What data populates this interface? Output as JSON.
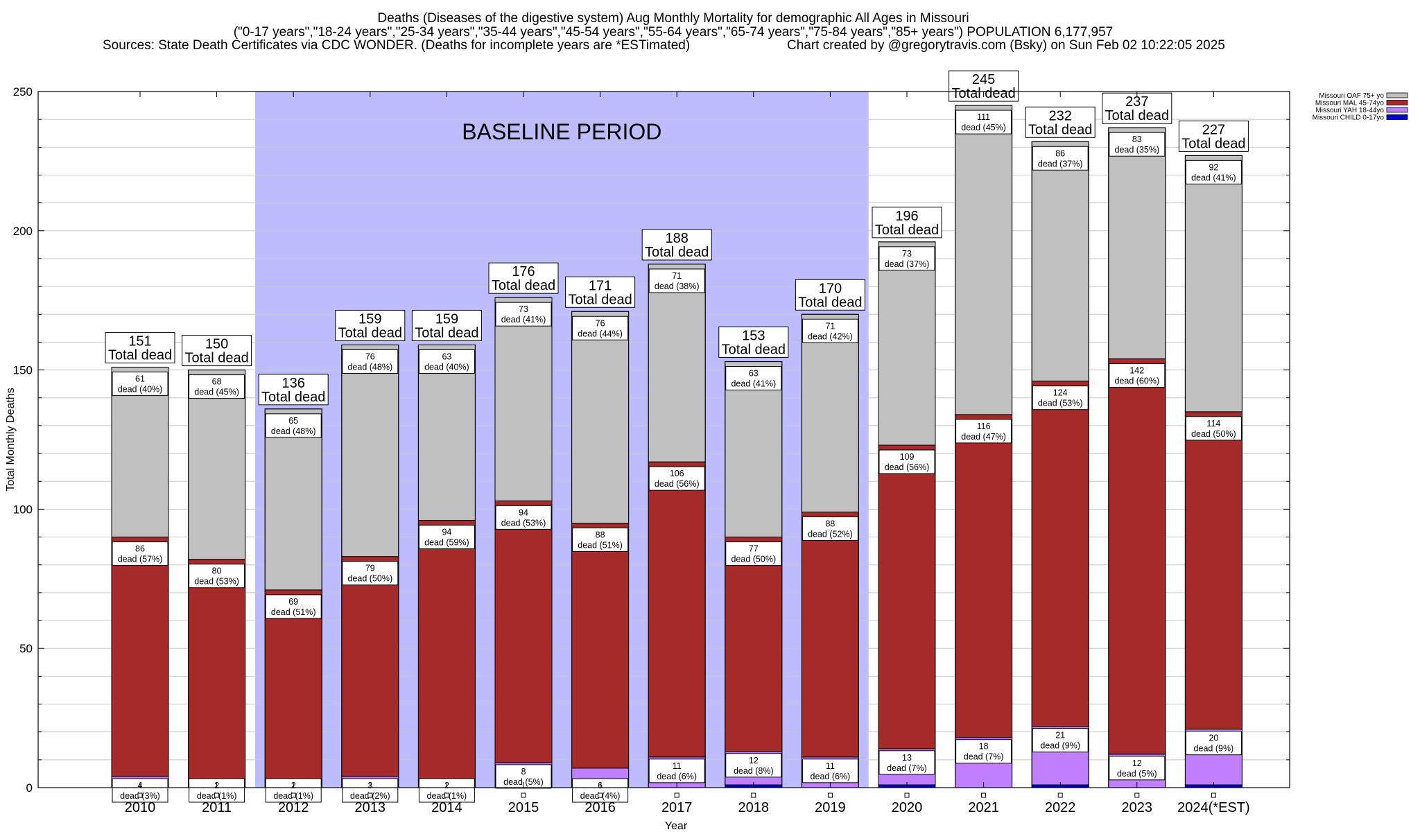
{
  "header": {
    "title_line1": "Deaths (Diseases of the digestive system) Aug Monthly Mortality for demographic All Ages in Missouri",
    "title_line2": "(\"0-17 years\",\"18-24 years\",\"25-34 years\",\"35-44 years\",\"45-54 years\",\"55-64 years\",\"65-74 years\",\"75-84 years\",\"85+ years\") POPULATION 6,177,957",
    "sources": "Sources: State Death Certificates via CDC WONDER. (Deaths for incomplete years are *ESTimated)",
    "credit": "Chart created by @gregorytravis.com (Bsky) on Sun Feb 02 10:22:05 2025"
  },
  "chart_data": {
    "type": "bar",
    "stacked": true,
    "xlabel": "Year",
    "ylabel": "Total Monthly Deaths",
    "ylim": [
      0,
      250
    ],
    "yticks": [
      0,
      50,
      100,
      150,
      200,
      250
    ],
    "grid": true,
    "legend_position": "top-right",
    "baseline_label": "BASELINE PERIOD",
    "baseline_range": [
      "2012",
      "2019"
    ],
    "total_label_suffix": "Total dead",
    "segment_label_word": "dead",
    "categories": [
      "2010",
      "2011",
      "2012",
      "2013",
      "2014",
      "2015",
      "2016",
      "2017",
      "2018",
      "2019",
      "2020",
      "2021",
      "2022",
      "2023",
      "2024(*EST)"
    ],
    "totals": [
      151,
      150,
      136,
      159,
      159,
      176,
      171,
      188,
      153,
      170,
      196,
      245,
      232,
      237,
      227
    ],
    "series": [
      {
        "name": "Missouri CHILD 0-17yo",
        "color": "#0000cc",
        "values": [
          0,
          0,
          0,
          1,
          0,
          1,
          1,
          0,
          1,
          0,
          1,
          0,
          1,
          0,
          1
        ]
      },
      {
        "name": "Missouri YAH 18-44yo",
        "color": "#bf7fff",
        "values": [
          4,
          2,
          2,
          3,
          2,
          8,
          6,
          11,
          12,
          11,
          13,
          18,
          21,
          12,
          20
        ],
        "percent_labels": [
          "3%",
          "1%",
          "1%",
          "2%",
          "1%",
          "5%",
          "4%",
          "6%",
          "8%",
          "6%",
          "7%",
          "7%",
          "9%",
          "5%",
          "9%"
        ]
      },
      {
        "name": "Missouri MAL 45-74yo",
        "color": "#a52a2a",
        "values": [
          86,
          80,
          69,
          79,
          94,
          94,
          88,
          106,
          77,
          88,
          109,
          116,
          124,
          142,
          114
        ],
        "percent_labels": [
          "57%",
          "53%",
          "51%",
          "50%",
          "59%",
          "53%",
          "51%",
          "56%",
          "50%",
          "52%",
          "56%",
          "47%",
          "53%",
          "60%",
          "50%"
        ]
      },
      {
        "name": "Missouri OAF 75+ yo",
        "color": "#c0c0c0",
        "values": [
          61,
          68,
          65,
          76,
          63,
          73,
          76,
          71,
          63,
          71,
          73,
          111,
          86,
          83,
          92
        ],
        "percent_labels": [
          "40%",
          "45%",
          "48%",
          "48%",
          "40%",
          "41%",
          "44%",
          "38%",
          "41%",
          "42%",
          "37%",
          "45%",
          "37%",
          "35%",
          "41%"
        ]
      }
    ],
    "legend_order": [
      "Missouri OAF 75+ yo",
      "Missouri MAL 45-74yo",
      "Missouri YAH 18-44yo",
      "Missouri CHILD 0-17yo"
    ]
  }
}
